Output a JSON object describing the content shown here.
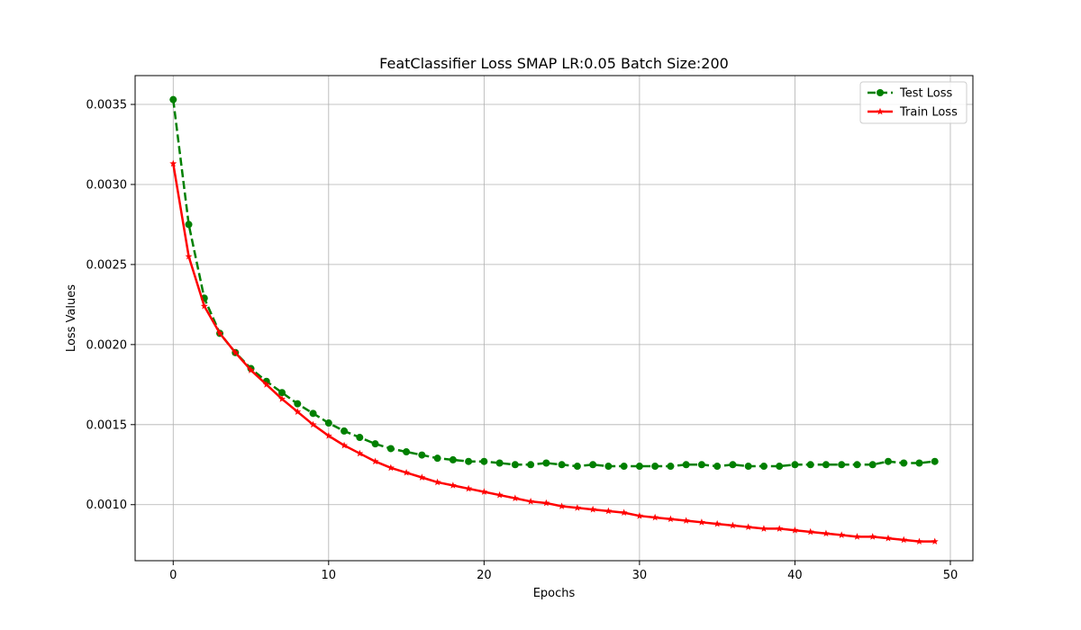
{
  "chart_data": {
    "type": "line",
    "title": "FeatClassifier Loss SMAP LR:0.05 Batch Size:200",
    "xlabel": "Epochs",
    "ylabel": "Loss Values",
    "xlim": [
      -2.45,
      51.45
    ],
    "ylim": [
      0.00065,
      0.00368
    ],
    "xticks": [
      0,
      10,
      20,
      30,
      40,
      50
    ],
    "yticks": [
      0.001,
      0.0015,
      0.002,
      0.0025,
      0.003,
      0.0035
    ],
    "xtick_labels": [
      "0",
      "10",
      "20",
      "30",
      "40",
      "50"
    ],
    "ytick_labels": [
      "0.0010",
      "0.0015",
      "0.0020",
      "0.0025",
      "0.0030",
      "0.0035"
    ],
    "grid": true,
    "legend_position": "top-right",
    "x": [
      0,
      1,
      2,
      3,
      4,
      5,
      6,
      7,
      8,
      9,
      10,
      11,
      12,
      13,
      14,
      15,
      16,
      17,
      18,
      19,
      20,
      21,
      22,
      23,
      24,
      25,
      26,
      27,
      28,
      29,
      30,
      31,
      32,
      33,
      34,
      35,
      36,
      37,
      38,
      39,
      40,
      41,
      42,
      43,
      44,
      45,
      46,
      47,
      48,
      49
    ],
    "series": [
      {
        "name": "Test Loss",
        "color": "#008000",
        "line_style": "dashed",
        "marker": "circle",
        "values": [
          0.00353,
          0.00275,
          0.00229,
          0.00207,
          0.00195,
          0.00185,
          0.00177,
          0.0017,
          0.00163,
          0.00157,
          0.00151,
          0.00146,
          0.00142,
          0.00138,
          0.00135,
          0.00133,
          0.00131,
          0.00129,
          0.00128,
          0.00127,
          0.00127,
          0.00126,
          0.00125,
          0.00125,
          0.00126,
          0.00125,
          0.00124,
          0.00125,
          0.00124,
          0.00124,
          0.00124,
          0.00124,
          0.00124,
          0.00125,
          0.00125,
          0.00124,
          0.00125,
          0.00124,
          0.00124,
          0.00124,
          0.00125,
          0.00125,
          0.00125,
          0.00125,
          0.00125,
          0.00125,
          0.00127,
          0.00126,
          0.00126,
          0.00127
        ]
      },
      {
        "name": "Train Loss",
        "color": "#ff0000",
        "line_style": "solid",
        "marker": "star",
        "values": [
          0.00313,
          0.00255,
          0.00224,
          0.00207,
          0.00195,
          0.00184,
          0.00175,
          0.00166,
          0.00158,
          0.0015,
          0.00143,
          0.00137,
          0.00132,
          0.00127,
          0.00123,
          0.0012,
          0.00117,
          0.00114,
          0.00112,
          0.0011,
          0.00108,
          0.00106,
          0.00104,
          0.00102,
          0.00101,
          0.00099,
          0.00098,
          0.00097,
          0.00096,
          0.00095,
          0.00093,
          0.00092,
          0.00091,
          0.0009,
          0.00089,
          0.00088,
          0.00087,
          0.00086,
          0.00085,
          0.00085,
          0.00084,
          0.00083,
          0.00082,
          0.00081,
          0.0008,
          0.0008,
          0.00079,
          0.00078,
          0.00077,
          0.00077
        ]
      }
    ]
  }
}
